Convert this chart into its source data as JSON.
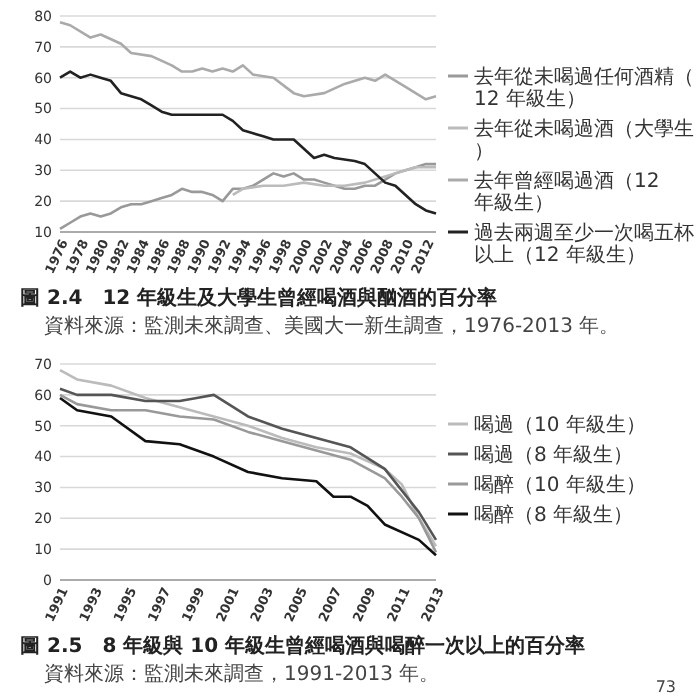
{
  "chart_data": [
    {
      "type": "line",
      "title": "圖 2.4　12 年級生及大學生曾經喝酒與酗酒的百分率",
      "subtitle": "資料來源：監測未來調查、美國大一新生調查，1976-2013 年。",
      "xlim": [
        1976,
        2013
      ],
      "xticks": [
        1976,
        1978,
        1980,
        1982,
        1984,
        1986,
        1988,
        1990,
        1992,
        1994,
        1996,
        1998,
        2000,
        2002,
        2004,
        2006,
        2008,
        2010,
        2012
      ],
      "ylim": [
        10,
        80
      ],
      "yticks": [
        10,
        20,
        30,
        40,
        50,
        60,
        70,
        80
      ],
      "grid": "y",
      "legend": "right",
      "marker": "none",
      "series": [
        {
          "name": "去年從未喝過任何酒精（12 年級生）",
          "color": "#999999",
          "x": [
            1976,
            1977,
            1978,
            1979,
            1980,
            1981,
            1982,
            1983,
            1984,
            1985,
            1986,
            1987,
            1988,
            1989,
            1990,
            1991,
            1992,
            1993,
            1994,
            1995,
            1996,
            1997,
            1998,
            1999,
            2000,
            2001,
            2002,
            2003,
            2004,
            2005,
            2006,
            2007,
            2008,
            2009,
            2010,
            2011,
            2012,
            2013
          ],
          "values": [
            11,
            13,
            15,
            16,
            15,
            16,
            18,
            19,
            19,
            20,
            21,
            22,
            24,
            23,
            23,
            22,
            20,
            24,
            24,
            25,
            27,
            29,
            28,
            29,
            27,
            27,
            26,
            25,
            24,
            24,
            25,
            25,
            27,
            29,
            30,
            31,
            32,
            32
          ]
        },
        {
          "name": "去年從未喝過酒（大學生）",
          "color": "#bbbbbb",
          "x": [
            1993,
            1994,
            1996,
            1998,
            2000,
            2002,
            2004,
            2006,
            2008,
            2010,
            2011,
            2012,
            2013
          ],
          "values": [
            22,
            24,
            25,
            25,
            26,
            25,
            25,
            26,
            28,
            30,
            31,
            31,
            31
          ]
        },
        {
          "name": "去年曾經喝過酒（12 年級生）",
          "color": "#aaaaaa",
          "x": [
            1976,
            1977,
            1979,
            1980,
            1982,
            1983,
            1985,
            1987,
            1988,
            1989,
            1990,
            1991,
            1992,
            1993,
            1994,
            1995,
            1997,
            1999,
            2000,
            2002,
            2004,
            2006,
            2007,
            2008,
            2010,
            2012,
            2013
          ],
          "values": [
            78,
            77,
            73,
            74,
            71,
            68,
            67,
            64,
            62,
            62,
            63,
            62,
            63,
            62,
            64,
            61,
            60,
            55,
            54,
            55,
            58,
            60,
            59,
            61,
            57,
            53,
            54
          ]
        },
        {
          "name": "過去兩週至少一次喝五杯以上（12 年級生）",
          "color": "#222222",
          "x": [
            1976,
            1977,
            1978,
            1979,
            1980,
            1981,
            1982,
            1983,
            1984,
            1985,
            1986,
            1987,
            1988,
            1990,
            1992,
            1993,
            1994,
            1995,
            1996,
            1997,
            1999,
            2000,
            2001,
            2002,
            2003,
            2005,
            2006,
            2007,
            2008,
            2009,
            2010,
            2011,
            2012,
            2013
          ],
          "values": [
            60,
            62,
            60,
            61,
            60,
            59,
            55,
            54,
            53,
            51,
            49,
            48,
            48,
            48,
            48,
            46,
            43,
            42,
            41,
            40,
            40,
            37,
            34,
            35,
            34,
            33,
            32,
            29,
            26,
            25,
            22,
            19,
            17,
            16
          ]
        }
      ]
    },
    {
      "type": "line",
      "title": "圖 2.5　8 年級與 10 年級生曾經喝酒與喝醉一次以上的百分率",
      "subtitle": "資料來源：監測未來調查，1991-2013 年。",
      "annotations": [
        "73"
      ],
      "xlim": [
        1991,
        2013
      ],
      "xticks": [
        1991,
        1993,
        1995,
        1997,
        1999,
        2001,
        2003,
        2005,
        2007,
        2009,
        2011,
        2013
      ],
      "ylim": [
        0,
        70
      ],
      "yticks": [
        0,
        10,
        20,
        30,
        40,
        50,
        60,
        70
      ],
      "grid": "y",
      "legend": "right",
      "marker": "none",
      "series": [
        {
          "name": "喝過（10 年級生）",
          "color": "#bbbbbb",
          "x": [
            1991,
            1992,
            1994,
            1996,
            1998,
            2000,
            2002,
            2004,
            2006,
            2008,
            2010,
            2011,
            2012,
            2013
          ],
          "values": [
            68,
            65,
            63,
            59,
            56,
            53,
            50,
            46,
            43,
            41,
            36,
            31,
            20,
            11
          ]
        },
        {
          "name": "喝過（8 年級生）",
          "color": "#555555",
          "x": [
            1991,
            1992,
            1994,
            1996,
            1998,
            1999,
            2000,
            2002,
            2004,
            2006,
            2008,
            2010,
            2012,
            2013
          ],
          "values": [
            62,
            60,
            60,
            58,
            58,
            59,
            60,
            53,
            49,
            46,
            43,
            36,
            22,
            13
          ]
        },
        {
          "name": "喝醉（10 年級生）",
          "color": "#999999",
          "x": [
            1991,
            1992,
            1994,
            1996,
            1998,
            2000,
            2002,
            2004,
            2006,
            2008,
            2010,
            2011,
            2012,
            2013
          ],
          "values": [
            60,
            57,
            55,
            55,
            53,
            52,
            48,
            45,
            42,
            39,
            33,
            27,
            20,
            9
          ]
        },
        {
          "name": "喝醉（8 年級生）",
          "color": "#111111",
          "x": [
            1991,
            1992,
            1994,
            1996,
            1998,
            2000,
            2002,
            2004,
            2006,
            2007,
            2008,
            2009,
            2010,
            2012,
            2013
          ],
          "values": [
            59,
            55,
            53,
            45,
            44,
            40,
            35,
            33,
            32,
            27,
            27,
            24,
            18,
            13,
            8
          ]
        }
      ]
    }
  ]
}
